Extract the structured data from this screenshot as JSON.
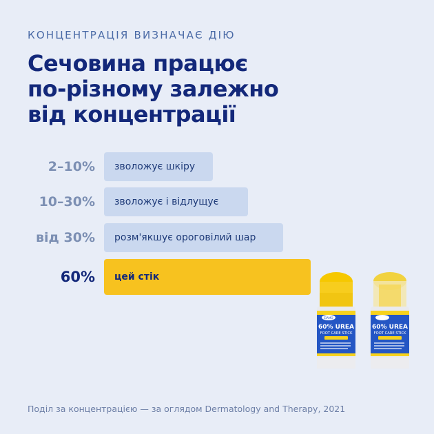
{
  "kicker": "КОНЦЕНТРАЦІЯ ВИЗНАЧАЄ ДІЮ",
  "headline": [
    "Сечовина працює",
    "по-різному залежно",
    "від концентрації"
  ],
  "rows": [
    {
      "percent": "2–10%",
      "effect": "зволожує шкіру"
    },
    {
      "percent": "10–30%",
      "effect": "зволожує і відлущує"
    },
    {
      "percent": "від 30%",
      "effect": "розм'якшує ороговілий шар"
    },
    {
      "percent": "60%",
      "effect": "цей стік",
      "highlight": true
    }
  ],
  "product": {
    "brand": "EIAMO",
    "line1": "60% UREA",
    "line2": "FOOT CARE STICK",
    "tag": "WITH SALICYLIC ACID"
  },
  "colors": {
    "background": "#e8edf7",
    "navy": "#13287a",
    "bar": "#cad8ef",
    "highlight": "#f7c21f"
  },
  "footnote": "Поділ за концентрацією — за оглядом Dermatology and Therapy, 2021"
}
